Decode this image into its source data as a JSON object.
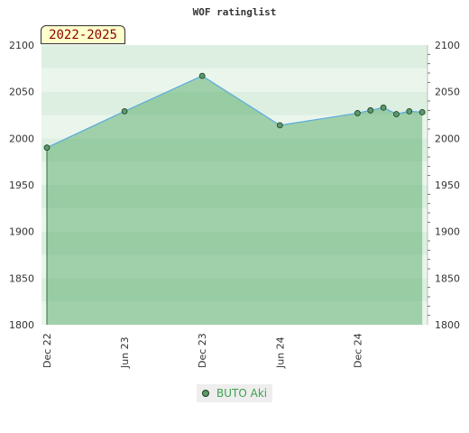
{
  "chart_data": {
    "type": "area",
    "title": "WOF ratinglist",
    "period_label": "2022-2025",
    "ylim": [
      1800,
      2100
    ],
    "y_ticks": [
      1800,
      1850,
      1900,
      1950,
      2000,
      2050,
      2100
    ],
    "x_tick_labels": [
      "Dec 22",
      "Jun 23",
      "Dec 23",
      "Jun 24",
      "Dec 24"
    ],
    "series": [
      {
        "name": "BUTO Aki",
        "x": [
          "2022-12",
          "2023-06",
          "2023-12",
          "2024-06",
          "2024-12",
          "2025-01",
          "2025-02",
          "2025-03",
          "2025-04",
          "2025-05"
        ],
        "values": [
          1990,
          2029,
          2067,
          2014,
          2027,
          2030,
          2033,
          2026,
          2029,
          2028
        ]
      }
    ],
    "legend_position": "bottom-center",
    "grid": true
  },
  "colors": {
    "line": "#5aaadf",
    "marker_fill": "#5a9a6a",
    "legend_text": "#3fa04f",
    "period_text": "#8b0000",
    "period_bg": "#ffffcc"
  }
}
